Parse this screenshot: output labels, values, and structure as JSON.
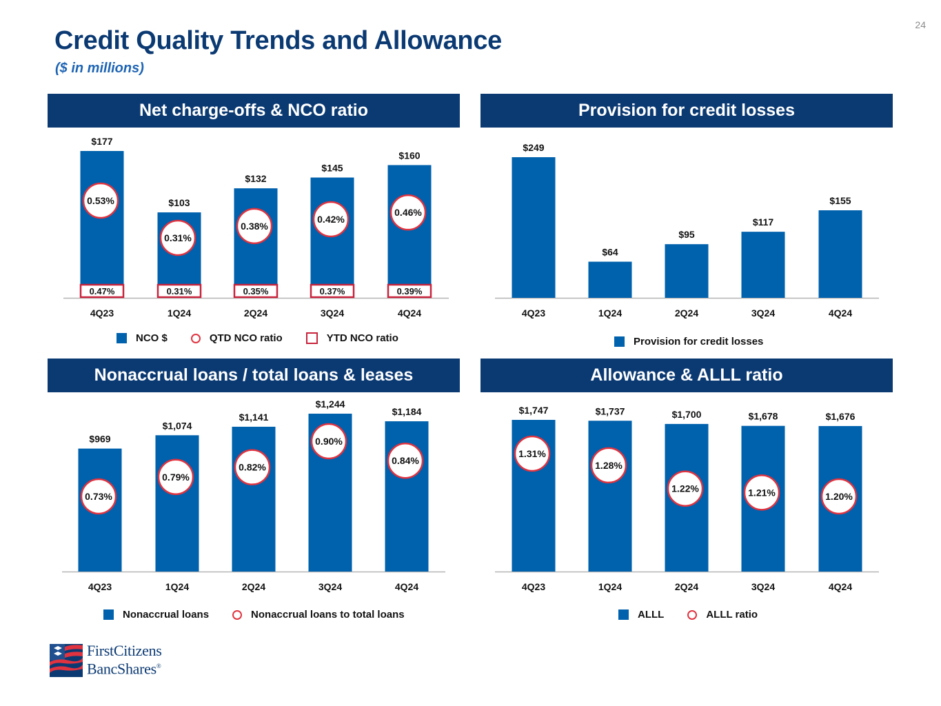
{
  "page": {
    "number": "24",
    "title": "Credit Quality Trends and Allowance",
    "subtitle": "($ in millions)"
  },
  "logo": {
    "line1": "FirstCitizens",
    "line2": "BancShares",
    "mark": "®"
  },
  "colors": {
    "bar": "#0061ad",
    "navy": "#0b3a73",
    "ratio_circle": "#e0333f",
    "ytd_box": "#c8233c"
  },
  "legends": {
    "nco": {
      "bar": "NCO $",
      "circle": "QTD NCO ratio",
      "box": "YTD NCO ratio"
    },
    "prov": {
      "bar": "Provision for credit losses"
    },
    "nonacc": {
      "bar": "Nonaccrual loans",
      "circle": "Nonaccrual loans to total loans"
    },
    "allow": {
      "bar": "ALLL",
      "circle": "ALLL ratio"
    }
  },
  "chart_data": [
    {
      "id": "nco",
      "type": "bar",
      "title": "Net charge-offs & NCO ratio",
      "categories": [
        "4Q23",
        "1Q24",
        "2Q24",
        "3Q24",
        "4Q24"
      ],
      "series": [
        {
          "name": "NCO $",
          "values": [
            177,
            103,
            132,
            145,
            160
          ],
          "labels": [
            "$177",
            "$103",
            "$132",
            "$145",
            "$160"
          ]
        },
        {
          "name": "QTD NCO ratio",
          "values": [
            0.53,
            0.31,
            0.38,
            0.42,
            0.46
          ],
          "labels": [
            "0.53%",
            "0.31%",
            "0.38%",
            "0.42%",
            "0.46%"
          ]
        },
        {
          "name": "YTD NCO ratio",
          "values": [
            0.47,
            0.31,
            0.35,
            0.37,
            0.39
          ],
          "labels": [
            "0.47%",
            "0.31%",
            "0.35%",
            "0.37%",
            "0.39%"
          ]
        }
      ],
      "ylim": [
        0,
        190
      ],
      "grid": false
    },
    {
      "id": "prov",
      "type": "bar",
      "title": "Provision for credit losses",
      "categories": [
        "4Q23",
        "1Q24",
        "2Q24",
        "3Q24",
        "4Q24"
      ],
      "series": [
        {
          "name": "Provision for credit losses",
          "values": [
            249,
            64,
            95,
            117,
            155
          ],
          "labels": [
            "$249",
            "$64",
            "$95",
            "$117",
            "$155"
          ]
        }
      ],
      "ylim": [
        0,
        262
      ],
      "grid": false
    },
    {
      "id": "nonacc",
      "type": "bar",
      "title": "Nonaccrual loans / total loans & leases",
      "categories": [
        "4Q23",
        "1Q24",
        "2Q24",
        "3Q24",
        "4Q24"
      ],
      "series": [
        {
          "name": "Nonaccrual loans",
          "values": [
            969,
            1074,
            1141,
            1244,
            1184
          ],
          "labels": [
            "$969",
            "$1,074",
            "$1,141",
            "$1,244",
            "$1,184"
          ]
        },
        {
          "name": "Nonaccrual loans to total loans",
          "values": [
            0.73,
            0.79,
            0.82,
            0.9,
            0.84
          ],
          "labels": [
            "0.73%",
            "0.79%",
            "0.82%",
            "0.90%",
            "0.84%"
          ]
        }
      ],
      "ylim": [
        0,
        1290
      ],
      "grid": false
    },
    {
      "id": "allow",
      "type": "bar",
      "title": "Allowance & ALLL ratio",
      "categories": [
        "4Q23",
        "1Q24",
        "2Q24",
        "3Q24",
        "4Q24"
      ],
      "series": [
        {
          "name": "ALLL",
          "values": [
            1747,
            1737,
            1700,
            1678,
            1676
          ],
          "labels": [
            "$1,747",
            "$1,737",
            "$1,700",
            "$1,678",
            "$1,676"
          ]
        },
        {
          "name": "ALLL ratio",
          "values": [
            1.31,
            1.28,
            1.22,
            1.21,
            1.2
          ],
          "labels": [
            "1.31%",
            "1.28%",
            "1.22%",
            "1.21%",
            "1.20%"
          ]
        }
      ],
      "ylim": [
        0,
        1800
      ],
      "grid": false
    }
  ]
}
